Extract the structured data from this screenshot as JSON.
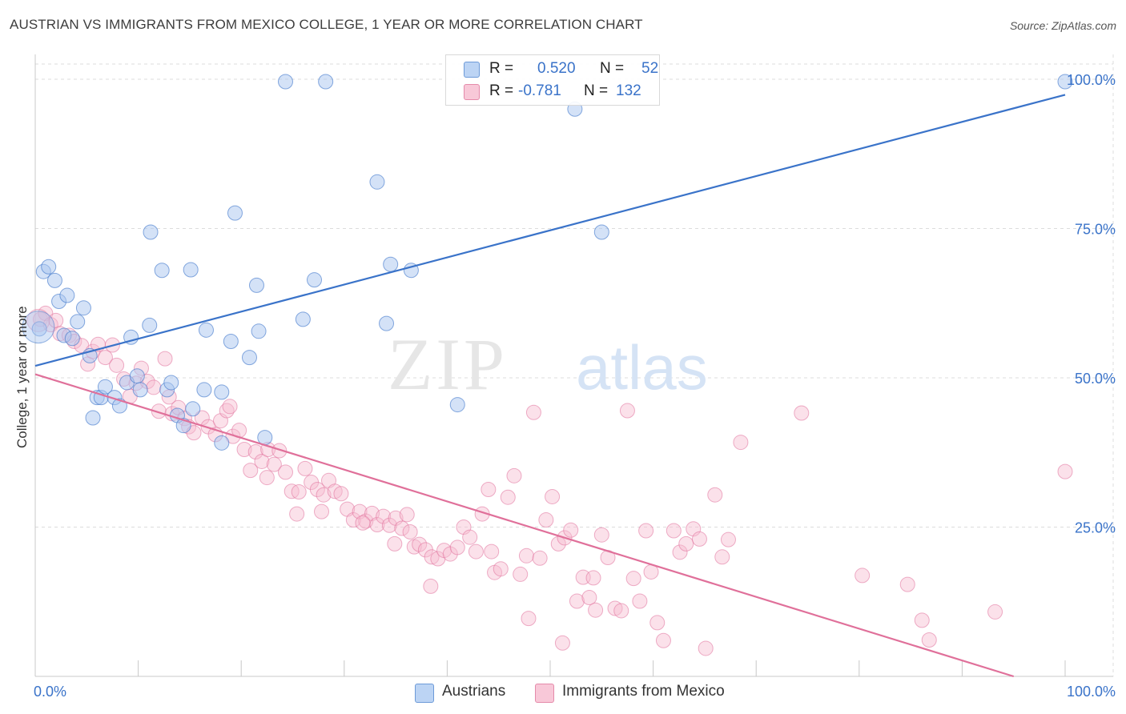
{
  "title": "AUSTRIAN VS IMMIGRANTS FROM MEXICO COLLEGE, 1 YEAR OR MORE CORRELATION CHART",
  "source": "Source: ZipAtlas.com",
  "watermark": {
    "zip": "ZIP",
    "atlas": "atlas"
  },
  "colors": {
    "blue": "#3a73c9",
    "pink": "#e0709a",
    "blue_fill": "#a9c6f0",
    "pink_fill": "#f6bdd0",
    "grid": "#dcdcdc"
  },
  "legend": {
    "rows": [
      {
        "r_label": "R =",
        "r_value": "0.520",
        "n_label": "N =",
        "n_value": "52"
      },
      {
        "r_label": "R =",
        "r_value": "-0.781",
        "n_label": "N =",
        "n_value": "132"
      }
    ]
  },
  "chart_data": {
    "type": "scatter",
    "title": "AUSTRIAN VS IMMIGRANTS FROM MEXICO COLLEGE, 1 YEAR OR MORE CORRELATION CHART",
    "xlabel": "",
    "ylabel": "College, 1 year or more",
    "xlim": [
      0,
      100
    ],
    "ylim": [
      0,
      100
    ],
    "x_ticks": [
      "0.0%",
      "100.0%"
    ],
    "y_ticks": [
      "25.0%",
      "50.0%",
      "75.0%",
      "100.0%"
    ],
    "grid": true,
    "legend_position": "top-center",
    "series": [
      {
        "name": "Austrians",
        "color": "#3a73c9",
        "trend": {
          "x": [
            0,
            100
          ],
          "y": [
            52.0,
            97.4
          ]
        },
        "points": [
          [
            0.4,
            58.2
          ],
          [
            0.8,
            67.8
          ],
          [
            1.3,
            68.6
          ],
          [
            1.9,
            66.3
          ],
          [
            2.3,
            62.8
          ],
          [
            3.1,
            63.8
          ],
          [
            4.1,
            59.4
          ],
          [
            2.8,
            57.1
          ],
          [
            3.6,
            56.6
          ],
          [
            4.7,
            61.7
          ],
          [
            5.3,
            53.7
          ],
          [
            5.6,
            43.3
          ],
          [
            6.0,
            46.7
          ],
          [
            6.4,
            46.7
          ],
          [
            6.8,
            48.5
          ],
          [
            7.7,
            46.7
          ],
          [
            8.2,
            45.3
          ],
          [
            8.9,
            49.2
          ],
          [
            9.3,
            56.8
          ],
          [
            9.9,
            50.3
          ],
          [
            10.2,
            48.0
          ],
          [
            11.1,
            58.8
          ],
          [
            11.2,
            74.4
          ],
          [
            12.3,
            68.0
          ],
          [
            12.8,
            48.0
          ],
          [
            13.2,
            49.2
          ],
          [
            13.8,
            43.7
          ],
          [
            14.4,
            42.0
          ],
          [
            15.1,
            68.1
          ],
          [
            15.3,
            44.8
          ],
          [
            16.4,
            48.0
          ],
          [
            16.6,
            58.0
          ],
          [
            18.1,
            39.1
          ],
          [
            18.1,
            47.6
          ],
          [
            19.0,
            56.1
          ],
          [
            19.4,
            77.6
          ],
          [
            20.8,
            53.4
          ],
          [
            21.5,
            65.5
          ],
          [
            21.7,
            57.8
          ],
          [
            22.3,
            40.0
          ],
          [
            24.3,
            99.6
          ],
          [
            26.0,
            59.8
          ],
          [
            27.1,
            66.4
          ],
          [
            28.2,
            99.6
          ],
          [
            33.2,
            82.8
          ],
          [
            34.1,
            59.1
          ],
          [
            34.5,
            69.0
          ],
          [
            36.5,
            68.0
          ],
          [
            41.0,
            45.5
          ],
          [
            52.4,
            95.0
          ],
          [
            55.0,
            74.4
          ],
          [
            100,
            99.6
          ]
        ]
      },
      {
        "name": "Immigrants from Mexico",
        "color": "#e0709a",
        "trend": {
          "x": [
            0,
            95.0
          ],
          "y": [
            50.6,
            0
          ]
        },
        "points": [
          [
            0.5,
            59.8
          ],
          [
            1.0,
            60.8
          ],
          [
            1.5,
            58.9
          ],
          [
            2.0,
            59.6
          ],
          [
            2.4,
            57.4
          ],
          [
            3.3,
            57.1
          ],
          [
            3.8,
            56.1
          ],
          [
            4.5,
            55.4
          ],
          [
            5.1,
            52.3
          ],
          [
            5.6,
            54.4
          ],
          [
            6.1,
            55.6
          ],
          [
            6.8,
            53.4
          ],
          [
            7.5,
            55.5
          ],
          [
            7.9,
            52.1
          ],
          [
            8.6,
            49.8
          ],
          [
            9.2,
            46.9
          ],
          [
            9.8,
            49.1
          ],
          [
            10.3,
            51.6
          ],
          [
            10.9,
            49.4
          ],
          [
            11.5,
            48.4
          ],
          [
            12.0,
            44.4
          ],
          [
            12.6,
            53.2
          ],
          [
            13.3,
            44.0
          ],
          [
            13.9,
            45.0
          ],
          [
            14.5,
            43.2
          ],
          [
            14.9,
            41.8
          ],
          [
            15.4,
            40.8
          ],
          [
            16.2,
            43.3
          ],
          [
            16.8,
            41.8
          ],
          [
            17.5,
            40.5
          ],
          [
            18.0,
            42.8
          ],
          [
            18.6,
            44.5
          ],
          [
            19.2,
            40.2
          ],
          [
            19.8,
            41.2
          ],
          [
            20.3,
            38.0
          ],
          [
            20.9,
            34.5
          ],
          [
            21.4,
            37.6
          ],
          [
            22.0,
            36.0
          ],
          [
            22.6,
            38.0
          ],
          [
            23.2,
            35.5
          ],
          [
            23.7,
            37.8
          ],
          [
            24.3,
            34.2
          ],
          [
            24.9,
            31.0
          ],
          [
            25.6,
            30.9
          ],
          [
            26.2,
            34.8
          ],
          [
            26.8,
            32.5
          ],
          [
            27.4,
            31.3
          ],
          [
            28.0,
            30.4
          ],
          [
            28.5,
            32.8
          ],
          [
            29.1,
            31.0
          ],
          [
            29.7,
            30.6
          ],
          [
            30.3,
            28.0
          ],
          [
            30.9,
            26.2
          ],
          [
            31.5,
            27.6
          ],
          [
            32.1,
            26.0
          ],
          [
            32.7,
            27.3
          ],
          [
            33.2,
            25.4
          ],
          [
            33.8,
            26.8
          ],
          [
            34.4,
            25.3
          ],
          [
            35.0,
            26.5
          ],
          [
            35.6,
            24.8
          ],
          [
            36.1,
            27.1
          ],
          [
            36.8,
            21.7
          ],
          [
            37.3,
            22.1
          ],
          [
            37.9,
            21.2
          ],
          [
            38.5,
            20.0
          ],
          [
            39.1,
            19.7
          ],
          [
            39.7,
            21.1
          ],
          [
            40.3,
            20.5
          ],
          [
            41.0,
            21.6
          ],
          [
            41.6,
            25.0
          ],
          [
            42.2,
            23.3
          ],
          [
            42.8,
            20.9
          ],
          [
            43.4,
            27.2
          ],
          [
            44.0,
            31.3
          ],
          [
            44.6,
            17.4
          ],
          [
            45.2,
            18.0
          ],
          [
            45.9,
            30.0
          ],
          [
            46.5,
            33.6
          ],
          [
            47.1,
            17.1
          ],
          [
            47.7,
            20.2
          ],
          [
            48.4,
            44.2
          ],
          [
            49.0,
            19.8
          ],
          [
            49.6,
            26.2
          ],
          [
            50.2,
            30.1
          ],
          [
            50.8,
            22.2
          ],
          [
            51.4,
            23.2
          ],
          [
            52.0,
            24.5
          ],
          [
            52.6,
            12.6
          ],
          [
            53.2,
            16.6
          ],
          [
            53.8,
            13.2
          ],
          [
            54.4,
            11.1
          ],
          [
            55.0,
            23.7
          ],
          [
            55.6,
            19.9
          ],
          [
            56.3,
            11.4
          ],
          [
            56.9,
            11.0
          ],
          [
            57.5,
            44.5
          ],
          [
            58.1,
            16.4
          ],
          [
            58.7,
            12.6
          ],
          [
            59.3,
            24.4
          ],
          [
            59.8,
            17.5
          ],
          [
            60.4,
            9.0
          ],
          [
            61.0,
            6.0
          ],
          [
            62.0,
            24.4
          ],
          [
            62.6,
            20.8
          ],
          [
            63.2,
            22.2
          ],
          [
            63.9,
            24.7
          ],
          [
            64.5,
            23.0
          ],
          [
            65.1,
            4.7
          ],
          [
            66.0,
            30.4
          ],
          [
            66.7,
            20.0
          ],
          [
            67.3,
            22.9
          ],
          [
            68.5,
            39.2
          ],
          [
            74.4,
            44.1
          ],
          [
            80.3,
            16.9
          ],
          [
            84.7,
            15.4
          ],
          [
            86.1,
            9.4
          ],
          [
            86.8,
            6.1
          ],
          [
            93.2,
            10.8
          ],
          [
            100,
            34.3
          ],
          [
            13.0,
            46.8
          ],
          [
            18.9,
            45.2
          ],
          [
            22.5,
            33.3
          ],
          [
            25.4,
            27.2
          ],
          [
            27.8,
            27.6
          ],
          [
            31.8,
            25.7
          ],
          [
            34.9,
            22.2
          ],
          [
            36.4,
            24.2
          ],
          [
            38.4,
            15.1
          ],
          [
            44.3,
            20.9
          ],
          [
            47.9,
            9.7
          ],
          [
            51.2,
            5.6
          ],
          [
            54.2,
            16.5
          ]
        ]
      }
    ]
  },
  "bottom_legend": [
    {
      "label": "Austrians"
    },
    {
      "label": "Immigrants from Mexico"
    }
  ]
}
